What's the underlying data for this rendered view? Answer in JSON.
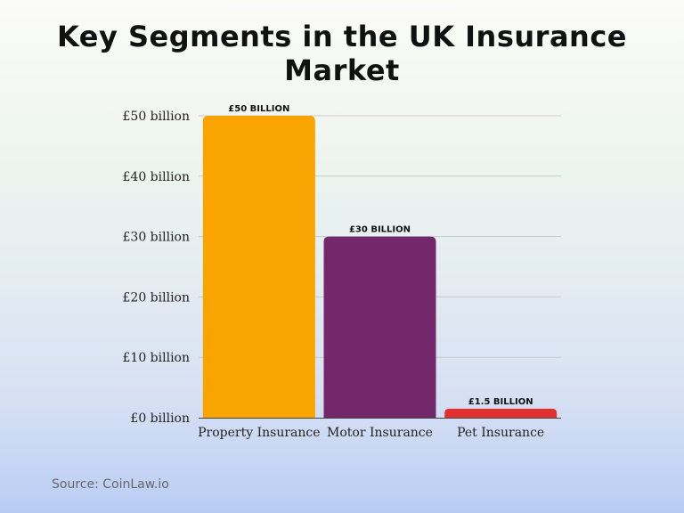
{
  "chart_data": {
    "type": "bar",
    "title": "Key Segments in the UK Insurance Market",
    "categories": [
      "Property Insurance",
      "Motor Insurance",
      "Pet Insurance"
    ],
    "values": [
      50,
      30,
      1.5
    ],
    "data_labels": [
      "£50 BILLION",
      "£30 BILLION",
      "£1.5 BILLION"
    ],
    "colors": [
      "#f9a400",
      "#74286c",
      "#e0302f"
    ],
    "yticks": [
      0,
      10,
      20,
      30,
      40,
      50
    ],
    "ytick_labels": [
      "£0 billion",
      "£10 billion",
      "£20 billion",
      "£30 billion",
      "£40 billion",
      "£50 billion"
    ],
    "ylim": [
      0,
      50
    ],
    "grid": true,
    "xlabel": "",
    "ylabel": ""
  },
  "source": "Source: CoinLaw.io"
}
